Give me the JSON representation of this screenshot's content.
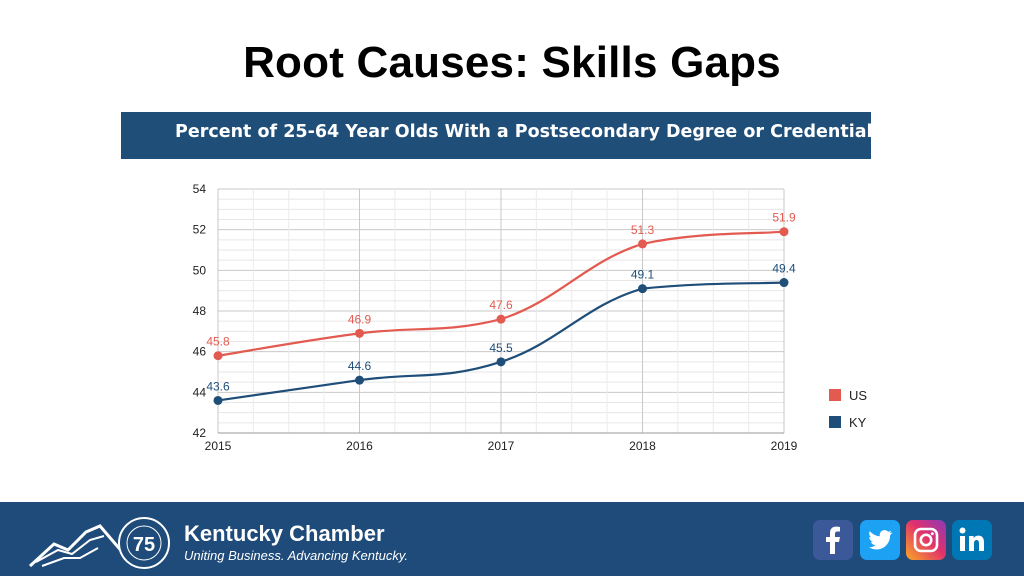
{
  "slide": {
    "title": "Root Causes: Skills Gaps"
  },
  "chart_banner": {
    "title": "Percent of 25-64 Year Olds With a Postsecondary Degree or Credential"
  },
  "chart_data": {
    "type": "line",
    "title": "Percent of 25-64 Year Olds With a Postsecondary Degree or Credential",
    "categories": [
      "2015",
      "2016",
      "2017",
      "2018",
      "2019"
    ],
    "series": [
      {
        "name": "US",
        "color": "#e35a50",
        "values": [
          45.8,
          46.9,
          47.6,
          51.3,
          51.9
        ]
      },
      {
        "name": "KY",
        "color": "#1f4e79",
        "values": [
          43.6,
          44.6,
          45.5,
          49.1,
          49.4
        ]
      }
    ],
    "ylim": [
      42,
      54
    ],
    "yticks": [
      42,
      44,
      46,
      48,
      50,
      52,
      54
    ],
    "grid": true,
    "smooth": true,
    "legend": "right",
    "xlabel": "",
    "ylabel": ""
  },
  "footer": {
    "badge_number": "75",
    "brand_name": "Kentucky Chamber",
    "tagline": "Uniting Business. Advancing Kentucky.",
    "background": "#1e4b79",
    "social_icons": [
      {
        "icon": "facebook-icon",
        "color": "#3b5998"
      },
      {
        "icon": "twitter-icon",
        "color": "#1da1f2"
      },
      {
        "icon": "instagram-icon",
        "color": "#c13584"
      },
      {
        "icon": "linkedin-icon",
        "color": "#0077b5"
      }
    ]
  }
}
